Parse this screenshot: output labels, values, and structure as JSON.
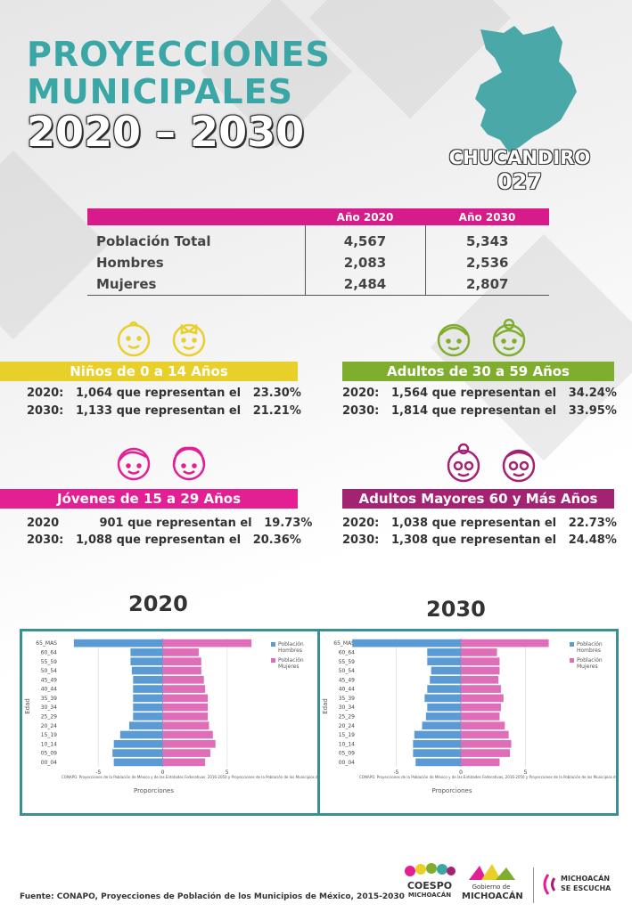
{
  "title": {
    "line1": "PROYECCIONES",
    "line2": "MUNICIPALES",
    "line3": "2020 – 2030"
  },
  "municipio": {
    "name": "CHUCANDIRO",
    "code": "027",
    "map_icon": "municipality-map-icon",
    "map_color": "#4aa9a8"
  },
  "table": {
    "headers": [
      "",
      "Año 2020",
      "Año 2030"
    ],
    "header_color": "#d81b8a",
    "rows": [
      {
        "label": "Población Total",
        "y2020": "4,567",
        "y2030": "5,343"
      },
      {
        "label": "Hombres",
        "y2020": "2,083",
        "y2030": "2,536"
      },
      {
        "label": "Mujeres",
        "y2020": "2,484",
        "y2030": "2,807"
      }
    ]
  },
  "groups": {
    "ninos": {
      "title": "Niños de 0 a 14 Años",
      "color": "#e9cf2a",
      "icon": "baby-faces-icon",
      "l2020": "2020:   1,064 que representan el   23.30%",
      "l2030": "2030:   1,133 que representan el   21.21%"
    },
    "adultos": {
      "title": "Adultos de 30 a 59 Años",
      "color": "#7fae2f",
      "icon": "adult-faces-icon",
      "l2020": "2020:   1,564 que representan el   34.24%",
      "l2030": "2030:   1,814 que representan el   33.95%"
    },
    "jovenes": {
      "title": "Jóvenes de 15 a 29 Años",
      "color": "#e31f93",
      "icon": "youth-faces-icon",
      "l2020": "2020          901 que representan el   19.73%",
      "l2030": "2030:   1,088 que representan el   20.36%"
    },
    "mayores": {
      "title": "Adultos Mayores  60 y Más Años",
      "color": "#a42272",
      "icon": "elderly-faces-icon",
      "l2020": "2020:   1,038 que representan el   22.73%",
      "l2030": "2030:   1,308 que representan el   24.48%"
    }
  },
  "chart_data": [
    {
      "type": "bar",
      "orientation": "horizontal",
      "title": "2020",
      "ylabel": "Edad",
      "xlabel": "Proporciones",
      "xlim": [
        -8,
        8
      ],
      "xticks": [
        "-5",
        "0",
        "5"
      ],
      "categories": [
        "65_MAS",
        "60_64",
        "55_59",
        "50_54",
        "45_49",
        "40_44",
        "35_39",
        "30_34",
        "25_29",
        "20_24",
        "15_19",
        "10_14",
        "05_09",
        "00_04"
      ],
      "series": [
        {
          "name": "Población Hombres",
          "color": "#5b9bd5",
          "values": [
            -6.9,
            -2.5,
            -2.5,
            -2.4,
            -2.3,
            -2.3,
            -2.3,
            -2.3,
            -2.3,
            -2.6,
            -3.3,
            -3.8,
            -3.9,
            -3.8
          ]
        },
        {
          "name": "Población Mujeres",
          "color": "#e06db8",
          "values": [
            6.9,
            2.8,
            3.0,
            3.0,
            3.2,
            3.3,
            3.5,
            3.5,
            3.5,
            3.6,
            3.9,
            4.1,
            3.7,
            3.3
          ]
        }
      ],
      "legend": "right",
      "source": "CONAPO. Proyecciones de la Población de México y de las Entidades Federativas, 2016-2050 y Proyecciones de la Población de los Municipios de Méxic"
    },
    {
      "type": "bar",
      "orientation": "horizontal",
      "title": "2030",
      "ylabel": "Edad",
      "xlabel": "Proporciones",
      "xlim": [
        -8,
        8
      ],
      "xticks": [
        "-5",
        "0",
        "5"
      ],
      "categories": [
        "65_MAS",
        "60_64",
        "55_59",
        "50_54",
        "45_49",
        "40_44",
        "35_39",
        "30_34",
        "25_29",
        "20_24",
        "15_19",
        "10_14",
        "05_09",
        "00_04"
      ],
      "series": [
        {
          "name": "Población Hombres",
          "color": "#5b9bd5",
          "values": [
            -8.4,
            -2.6,
            -2.6,
            -2.3,
            -2.4,
            -2.6,
            -2.8,
            -2.6,
            -2.7,
            -3.0,
            -3.6,
            -3.7,
            -3.7,
            -3.5
          ]
        },
        {
          "name": "Población Mujeres",
          "color": "#e06db8",
          "values": [
            6.8,
            2.8,
            3.0,
            3.0,
            2.9,
            3.1,
            3.3,
            3.1,
            3.0,
            3.4,
            3.7,
            3.9,
            3.8,
            3.0
          ]
        }
      ],
      "legend": "right",
      "source": "CONAPO. Proyecciones de la Población de México y de las Entidades Federativas, 2016-2050 y Proyecciones de la Población de los Municipios de Méxic"
    }
  ],
  "footer": "Fuente: CONAPO, Proyecciones de Población de los Municipios de México, 2015-2030",
  "logos": {
    "coespo": "COESPO",
    "coespo_sub": "MICHOACÁN",
    "gobierno_sub": "Gobierno de",
    "gobierno": "MICHOACÁN",
    "escucha1": "MICHOACÁN",
    "escucha2": "SE ESCUCHA"
  }
}
